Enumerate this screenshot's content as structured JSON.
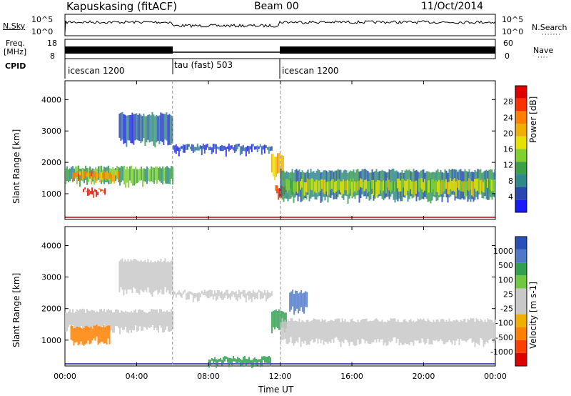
{
  "header": {
    "station": "Kapuskasing (fitACF)",
    "beam": "Beam 00",
    "date": "11/Oct/2014"
  },
  "top_panels": {
    "nsky_label": "N.Sky",
    "nsky_ticks": [
      "10^5",
      "10^0"
    ],
    "nsearch_label": "N.Search",
    "nsearch_ticks": [
      "10^5",
      "10^0"
    ],
    "freq_label": "Freq.",
    "freq_unit": "[MHz]",
    "freq_ticks": [
      "18",
      "8"
    ],
    "nave_label": "Nave",
    "nave_ticks": [
      "60",
      "0"
    ],
    "cpid_label": "CPID",
    "cpid_segments": [
      {
        "label": "icescan 1200",
        "start": 0,
        "end": 6
      },
      {
        "label": "tau (fast) 503",
        "start": 6,
        "end": 12
      },
      {
        "label": "icescan 1200",
        "start": 12,
        "end": 24
      }
    ]
  },
  "chart_data": [
    {
      "type": "heatmap",
      "name": "power",
      "ylabel": "Slant Range [km]",
      "colorbar_label": "Power [dB]",
      "colorbar_ticks": [
        "4",
        "8",
        "12",
        "16",
        "20",
        "24",
        "28"
      ],
      "colorbar_colors": [
        "#1a1aff",
        "#2848b0",
        "#2e8a8a",
        "#3ca048",
        "#80d030",
        "#e8e000",
        "#f0b000",
        "#ff8000",
        "#ff3000",
        "#e00000"
      ],
      "xlim": [
        0,
        24
      ],
      "ylim": [
        180,
        4600
      ],
      "yticks": [
        1000,
        2000,
        3000,
        4000
      ],
      "xticks": [
        "00:00",
        "04:00",
        "08:00",
        "12:00",
        "16:00",
        "20:00",
        "00:00"
      ],
      "regions": [
        {
          "t0": 0.0,
          "t1": 6.0,
          "r0": 1300,
          "r1": 1900,
          "level": 12
        },
        {
          "t0": 0.4,
          "t1": 3.0,
          "r0": 1400,
          "r1": 1750,
          "level": 22
        },
        {
          "t0": 1.0,
          "t1": 2.2,
          "r0": 950,
          "r1": 1200,
          "level": 28
        },
        {
          "t0": 3.0,
          "t1": 6.0,
          "r0": 2600,
          "r1": 3600,
          "level": 6
        },
        {
          "t0": 6.0,
          "t1": 11.5,
          "r0": 2300,
          "r1": 2600,
          "level": 5
        },
        {
          "t0": 11.5,
          "t1": 12.2,
          "r0": 1500,
          "r1": 2300,
          "level": 20
        },
        {
          "t0": 11.7,
          "t1": 12.3,
          "r0": 900,
          "r1": 1300,
          "level": 28
        },
        {
          "t0": 12.0,
          "t1": 24.0,
          "r0": 800,
          "r1": 1800,
          "level": 8
        },
        {
          "t0": 12.3,
          "t1": 24.0,
          "r0": 1000,
          "r1": 1500,
          "level": 16
        }
      ]
    },
    {
      "type": "heatmap",
      "name": "velocity",
      "ylabel": "Slant Range [km]",
      "xlabel": "Time UT",
      "colorbar_label": "Velocity [m s-1]",
      "colorbar_ticks": [
        "1000",
        "500",
        "100",
        "25",
        "-25",
        "-100",
        "-500",
        "-1000"
      ],
      "colorbar_colors": [
        "#2850b8",
        "#5078c8",
        "#30a050",
        "#70c840",
        "#c8c8c8",
        "#c8c8c8",
        "#f0b000",
        "#ff8000",
        "#ff4000",
        "#e00000"
      ],
      "xlim": [
        0,
        24
      ],
      "ylim": [
        180,
        4600
      ],
      "yticks": [
        1000,
        2000,
        3000,
        4000
      ],
      "xticks": [
        "00:00",
        "04:00",
        "08:00",
        "12:00",
        "16:00",
        "20:00",
        "00:00"
      ],
      "regions": [
        {
          "t0": 0.0,
          "t1": 6.0,
          "r0": 1300,
          "r1": 2000,
          "v": 0
        },
        {
          "t0": 0.3,
          "t1": 2.5,
          "r0": 900,
          "r1": 1500,
          "v": -300
        },
        {
          "t0": 3.0,
          "t1": 6.0,
          "r0": 2500,
          "r1": 3600,
          "v": 0
        },
        {
          "t0": 6.0,
          "t1": 11.5,
          "r0": 2300,
          "r1": 2600,
          "v": 0
        },
        {
          "t0": 11.5,
          "t1": 12.3,
          "r0": 1300,
          "r1": 2000,
          "v": 150
        },
        {
          "t0": 12.5,
          "t1": 13.5,
          "r0": 1900,
          "r1": 2600,
          "v": 600
        },
        {
          "t0": 12.0,
          "t1": 24.0,
          "r0": 900,
          "r1": 1700,
          "v": 0
        },
        {
          "t0": 8.0,
          "t1": 11.5,
          "r0": 200,
          "r1": 500,
          "v": 120
        }
      ]
    }
  ]
}
